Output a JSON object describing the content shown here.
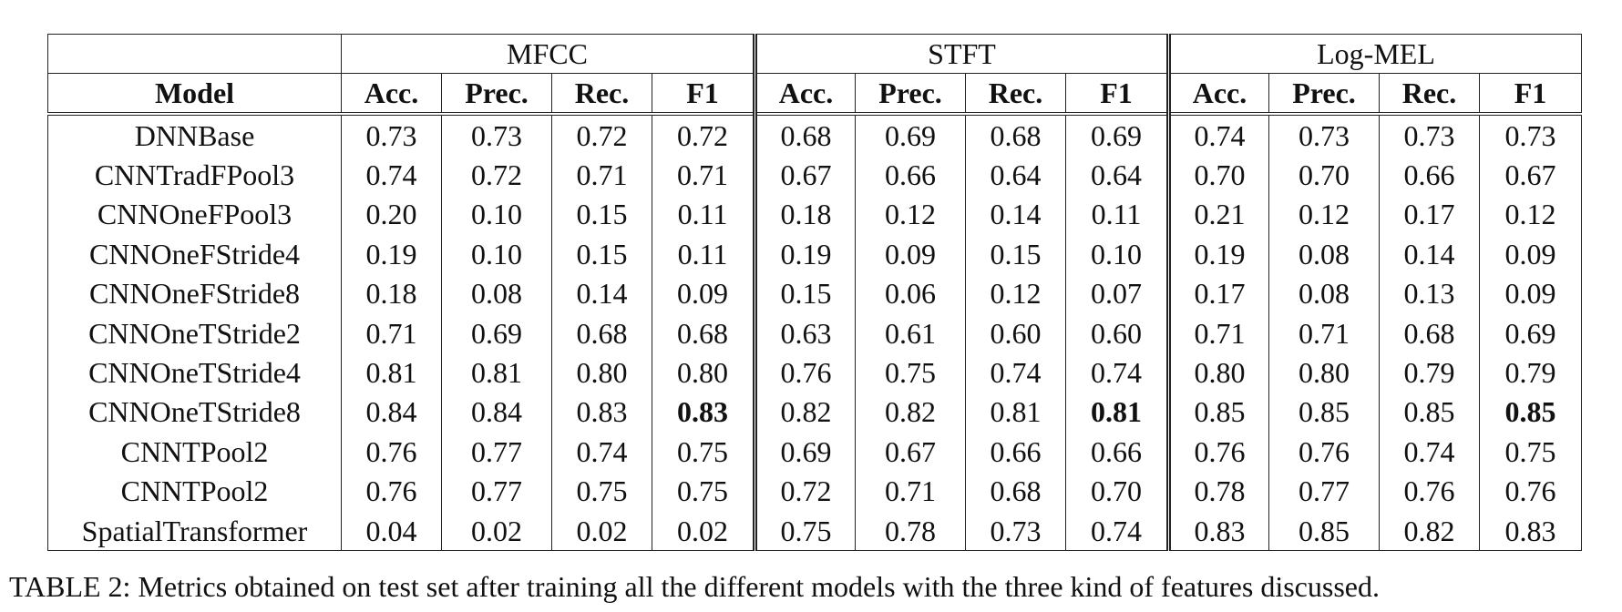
{
  "header": {
    "groups": [
      "MFCC",
      "STFT",
      "Log-MEL"
    ],
    "columns": [
      "Model",
      "Acc.",
      "Prec.",
      "Rec.",
      "F1",
      "Acc.",
      "Prec.",
      "Rec.",
      "F1",
      "Acc.",
      "Prec.",
      "Rec.",
      "F1"
    ]
  },
  "table": {
    "rows": [
      [
        "DNNBase",
        "0.73",
        "0.73",
        "0.72",
        "0.72",
        "0.68",
        "0.69",
        "0.68",
        "0.69",
        "0.74",
        "0.73",
        "0.73",
        "0.73"
      ],
      [
        "CNNTradFPool3",
        "0.74",
        "0.72",
        "0.71",
        "0.71",
        "0.67",
        "0.66",
        "0.64",
        "0.64",
        "0.70",
        "0.70",
        "0.66",
        "0.67"
      ],
      [
        "CNNOneFPool3",
        "0.20",
        "0.10",
        "0.15",
        "0.11",
        "0.18",
        "0.12",
        "0.14",
        "0.11",
        "0.21",
        "0.12",
        "0.17",
        "0.12"
      ],
      [
        "CNNOneFStride4",
        "0.19",
        "0.10",
        "0.15",
        "0.11",
        "0.19",
        "0.09",
        "0.15",
        "0.10",
        "0.19",
        "0.08",
        "0.14",
        "0.09"
      ],
      [
        "CNNOneFStride8",
        "0.18",
        "0.08",
        "0.14",
        "0.09",
        "0.15",
        "0.06",
        "0.12",
        "0.07",
        "0.17",
        "0.08",
        "0.13",
        "0.09"
      ],
      [
        "CNNOneTStride2",
        "0.71",
        "0.69",
        "0.68",
        "0.68",
        "0.63",
        "0.61",
        "0.60",
        "0.60",
        "0.71",
        "0.71",
        "0.68",
        "0.69"
      ],
      [
        "CNNOneTStride4",
        "0.81",
        "0.81",
        "0.80",
        "0.80",
        "0.76",
        "0.75",
        "0.74",
        "0.74",
        "0.80",
        "0.80",
        "0.79",
        "0.79"
      ],
      [
        "CNNOneTStride8",
        "0.84",
        "0.84",
        "0.83",
        "0.83",
        "0.82",
        "0.82",
        "0.81",
        "0.81",
        "0.85",
        "0.85",
        "0.85",
        "0.85"
      ],
      [
        "CNNTPool2",
        "0.76",
        "0.77",
        "0.74",
        "0.75",
        "0.69",
        "0.67",
        "0.66",
        "0.66",
        "0.76",
        "0.76",
        "0.74",
        "0.75"
      ],
      [
        "CNNTPool2",
        "0.76",
        "0.77",
        "0.75",
        "0.75",
        "0.72",
        "0.71",
        "0.68",
        "0.70",
        "0.78",
        "0.77",
        "0.76",
        "0.76"
      ],
      [
        "SpatialTransformer",
        "0.04",
        "0.02",
        "0.02",
        "0.02",
        "0.75",
        "0.78",
        "0.73",
        "0.74",
        "0.83",
        "0.85",
        "0.82",
        "0.83"
      ]
    ]
  },
  "caption": "TABLE 2: Metrics obtained on test set after training all the different models with the three kind of features discussed."
}
